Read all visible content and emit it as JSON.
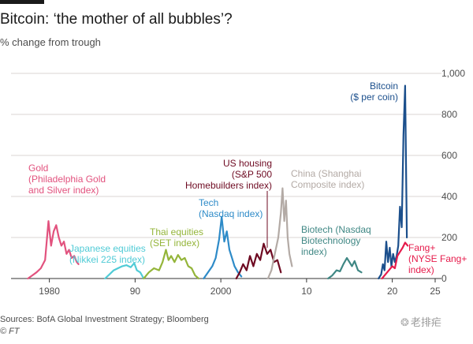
{
  "header": {
    "title": "Bitcoin: ‘the mother of all bubbles’?",
    "subtitle": "% change from trough"
  },
  "footer": {
    "source": "Sources: BofA Global Investment Strategy; Bloomberg",
    "credit": "© FT",
    "watermark": "老排疟",
    "watermark_icon": "wechat-icon"
  },
  "chart_data": {
    "type": "line",
    "title": "Bitcoin: ‘the mother of all bubbles’?",
    "ylabel": "% change from trough",
    "xlabel": "",
    "ylim": [
      0,
      1000
    ],
    "xlim": [
      1977,
      2025
    ],
    "grid": true,
    "legend": "none",
    "y_ticks": [
      {
        "value": 0,
        "label": "0"
      },
      {
        "value": 200,
        "label": "200"
      },
      {
        "value": 400,
        "label": "400"
      },
      {
        "value": 600,
        "label": "600"
      },
      {
        "value": 800,
        "label": "800"
      },
      {
        "value": 1000,
        "label": "1,000"
      }
    ],
    "x_ticks": [
      {
        "value": 1980,
        "label": "1980"
      },
      {
        "value": 1990,
        "label": "90"
      },
      {
        "value": 2000,
        "label": "2000"
      },
      {
        "value": 2010,
        "label": "10"
      },
      {
        "value": 2020,
        "label": "20"
      },
      {
        "value": 2025,
        "label": "25"
      }
    ],
    "series": [
      {
        "name": "Gold",
        "label": [
          "Gold",
          "(Philadelphia Gold",
          "and Silver index)"
        ],
        "color": "#e2527e",
        "x": [
          1977.5,
          1978.0,
          1978.5,
          1979.0,
          1979.5,
          1979.9,
          1980.2,
          1980.5,
          1980.8,
          1981.1,
          1981.4,
          1981.7,
          1982.0,
          1982.3,
          1982.6,
          1982.9,
          1983.2,
          1983.4
        ],
        "values": [
          0,
          15,
          30,
          50,
          90,
          280,
          160,
          230,
          260,
          200,
          160,
          180,
          120,
          140,
          100,
          110,
          80,
          70
        ]
      },
      {
        "name": "Japanese equities",
        "label": [
          "Japanese equities",
          "(Nikkei 225 index)"
        ],
        "color": "#50cbd6",
        "x": [
          1986.5,
          1987.0,
          1987.5,
          1988.0,
          1988.5,
          1989.0,
          1989.5,
          1989.9,
          1990.2,
          1990.6,
          1991.0
        ],
        "values": [
          0,
          20,
          40,
          50,
          60,
          65,
          55,
          75,
          40,
          30,
          0
        ]
      },
      {
        "name": "Thai equities",
        "label": [
          "Thai equities",
          "(SET index)"
        ],
        "color": "#94b53a",
        "x": [
          1991.0,
          1991.6,
          1992.2,
          1992.8,
          1993.2,
          1993.6,
          1993.9,
          1994.2,
          1994.6,
          1995.0,
          1995.4,
          1995.8,
          1996.2,
          1996.6,
          1997.0,
          1997.4
        ],
        "values": [
          0,
          30,
          50,
          40,
          80,
          140,
          90,
          110,
          80,
          115,
          90,
          100,
          60,
          50,
          15,
          0
        ]
      },
      {
        "name": "Tech",
        "label": [
          "Tech",
          "(Nasdaq index)"
        ],
        "color": "#2e8bc8",
        "x": [
          1998.0,
          1998.5,
          1999.0,
          1999.4,
          1999.8,
          2000.1,
          2000.4,
          2000.7,
          2001.0,
          2001.3,
          2001.6,
          2002.0,
          2002.4
        ],
        "values": [
          0,
          30,
          60,
          100,
          190,
          300,
          180,
          230,
          140,
          100,
          60,
          30,
          10
        ]
      },
      {
        "name": "US housing",
        "label": [
          "US housing",
          "(S&P 500",
          "Homebuilders index)"
        ],
        "color": "#6e0a22",
        "x": [
          2001.8,
          2002.2,
          2002.6,
          2003.0,
          2003.4,
          2003.8,
          2004.2,
          2004.6,
          2005.0,
          2005.4,
          2005.8,
          2006.2,
          2006.6,
          2007.0
        ],
        "values": [
          0,
          30,
          70,
          40,
          110,
          60,
          120,
          90,
          170,
          120,
          140,
          80,
          90,
          30
        ]
      },
      {
        "name": "China",
        "label": [
          "China (Shanghai",
          "Composite index)"
        ],
        "color": "#b3aaa5",
        "x": [
          2005.5,
          2005.9,
          2006.3,
          2006.7,
          2007.0,
          2007.2,
          2007.4,
          2007.6,
          2007.8,
          2008.0,
          2008.3
        ],
        "values": [
          0,
          40,
          120,
          200,
          320,
          440,
          280,
          380,
          200,
          120,
          60
        ]
      },
      {
        "name": "Biotech",
        "label": [
          "Biotech (Nasdaq",
          "Biotechnology",
          "index)"
        ],
        "color": "#3f8784",
        "x": [
          2012.5,
          2013.0,
          2013.5,
          2013.9,
          2014.3,
          2014.7,
          2015.0,
          2015.3,
          2015.6,
          2016.0,
          2016.4
        ],
        "values": [
          0,
          15,
          40,
          35,
          70,
          100,
          80,
          60,
          85,
          40,
          30
        ]
      },
      {
        "name": "Bitcoin",
        "label": [
          "Bitcoin",
          "($ per coin)"
        ],
        "color": "#1b4f8c",
        "x": [
          2018.4,
          2018.7,
          2018.9,
          2019.1,
          2019.3,
          2019.5,
          2019.7,
          2019.9,
          2020.1,
          2020.3,
          2020.5,
          2020.7,
          2020.9,
          2021.1,
          2021.3,
          2021.5,
          2021.7
        ],
        "values": [
          0,
          20,
          70,
          40,
          180,
          80,
          150,
          60,
          120,
          80,
          110,
          160,
          350,
          250,
          700,
          940,
          200
        ]
      },
      {
        "name": "Fang+",
        "label": [
          "Fang+",
          "(NYSE Fang+",
          "index)"
        ],
        "color": "#e61b4b",
        "x": [
          2018.8,
          2019.2,
          2019.6,
          2020.0,
          2020.3,
          2020.6,
          2020.9,
          2021.2,
          2021.5,
          2021.8
        ],
        "values": [
          0,
          20,
          40,
          60,
          50,
          110,
          130,
          150,
          175,
          160
        ]
      }
    ]
  }
}
